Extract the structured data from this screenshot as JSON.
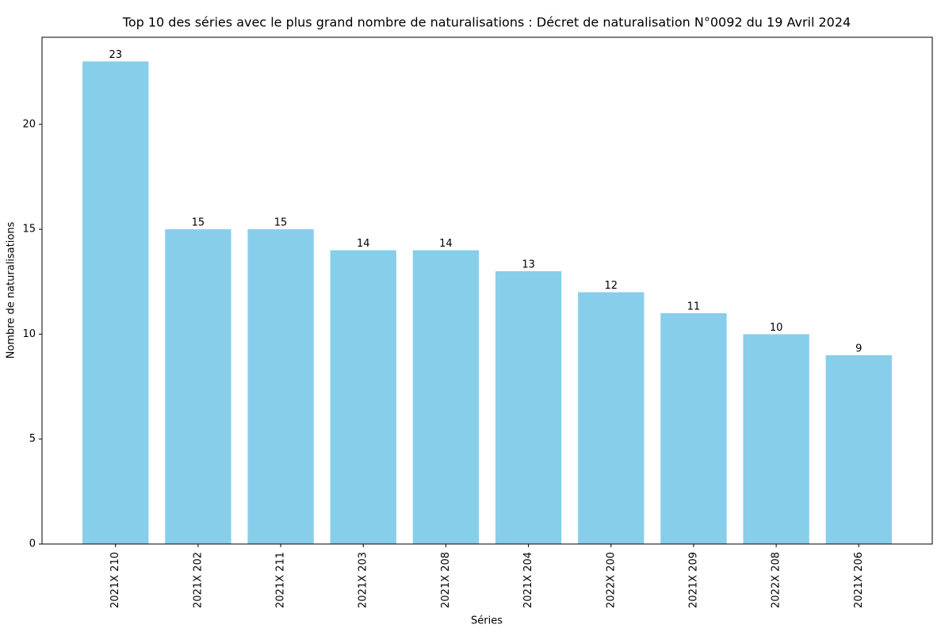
{
  "chart_data": {
    "type": "bar",
    "title": "Top 10 des séries avec le plus grand nombre de naturalisations : Décret de naturalisation N°0092 du 19 Avril 2024",
    "x_label": "Séries",
    "y_label": "Nombre de naturalisations",
    "categories": [
      "2021X 210",
      "2021X 202",
      "2021X 211",
      "2021X 203",
      "2021X 208",
      "2021X 204",
      "2022X 200",
      "2021X 209",
      "2022X 208",
      "2021X 206"
    ],
    "values": [
      23,
      15,
      15,
      14,
      14,
      13,
      12,
      11,
      10,
      9
    ],
    "color": "#87ceeb",
    "ylim": [
      0,
      24.15
    ],
    "yticks": [
      0,
      5,
      10,
      15,
      20
    ],
    "grid": false
  }
}
